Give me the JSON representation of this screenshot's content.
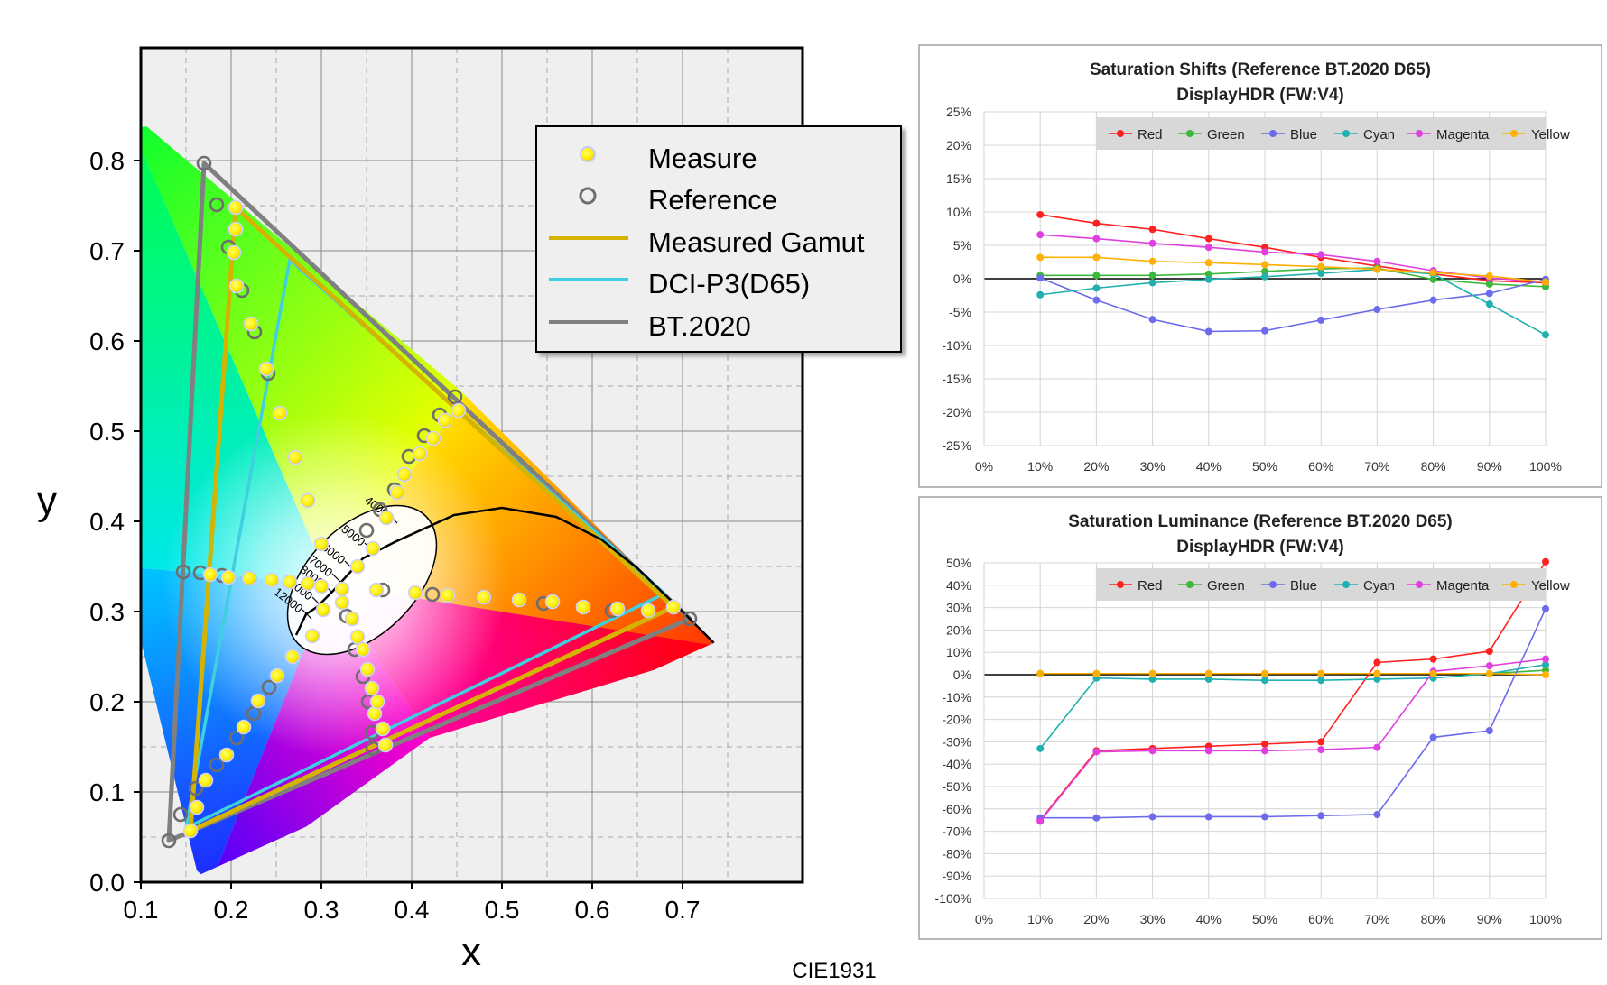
{
  "cie_chart": {
    "type": "scatter",
    "xlabel": "x",
    "ylabel": "y",
    "xlim": [
      0.1,
      0.75
    ],
    "ylim": [
      0.0,
      0.82
    ],
    "x_ticks": [
      "0.1",
      "0.2",
      "0.3",
      "0.4",
      "0.5",
      "0.6",
      "0.7"
    ],
    "y_ticks": [
      "0.0",
      "0.1",
      "0.2",
      "0.3",
      "0.4",
      "0.5",
      "0.6",
      "0.7",
      "0.8"
    ],
    "grid": true,
    "caption": "CIE1931",
    "legend": {
      "placement": "top-right",
      "items": [
        {
          "label": "Measure",
          "kind": "measure"
        },
        {
          "label": "Reference",
          "kind": "reference"
        },
        {
          "label": "Measured Gamut",
          "kind": "line",
          "color": "#D4B400"
        },
        {
          "label": "DCI-P3(D65)",
          "kind": "line",
          "color": "#3FD0E0"
        },
        {
          "label": "BT.2020",
          "kind": "line",
          "color": "#808080"
        }
      ]
    },
    "measure_color": "#FFEE00",
    "reference_color": "#6E6E6E",
    "gamuts": {
      "bt2020": [
        [
          0.708,
          0.292
        ],
        [
          0.17,
          0.797
        ],
        [
          0.131,
          0.046
        ]
      ],
      "dcip3": [
        [
          0.68,
          0.32
        ],
        [
          0.265,
          0.69
        ],
        [
          0.15,
          0.06
        ]
      ],
      "measured": [
        [
          0.69,
          0.305
        ],
        [
          0.205,
          0.748
        ],
        [
          0.155,
          0.057
        ]
      ]
    },
    "white_point": [
      0.3127,
      0.329
    ],
    "cct_labels": [
      "4000",
      "5000",
      "6000",
      "7000",
      "8000",
      "10000",
      "12000"
    ],
    "reference_points": [
      [
        0.17,
        0.797
      ],
      [
        0.184,
        0.751
      ],
      [
        0.197,
        0.704
      ],
      [
        0.212,
        0.656
      ],
      [
        0.226,
        0.61
      ],
      [
        0.241,
        0.564
      ],
      [
        0.708,
        0.292
      ],
      [
        0.622,
        0.301
      ],
      [
        0.546,
        0.309
      ],
      [
        0.48,
        0.316
      ],
      [
        0.423,
        0.319
      ],
      [
        0.368,
        0.324
      ],
      [
        0.131,
        0.046
      ],
      [
        0.144,
        0.075
      ],
      [
        0.161,
        0.104
      ],
      [
        0.184,
        0.13
      ],
      [
        0.206,
        0.16
      ],
      [
        0.225,
        0.187
      ],
      [
        0.242,
        0.216
      ],
      [
        0.147,
        0.344
      ],
      [
        0.166,
        0.343
      ],
      [
        0.19,
        0.34
      ],
      [
        0.22,
        0.337
      ],
      [
        0.448,
        0.538
      ],
      [
        0.431,
        0.518
      ],
      [
        0.414,
        0.495
      ],
      [
        0.397,
        0.472
      ],
      [
        0.381,
        0.435
      ],
      [
        0.365,
        0.413
      ],
      [
        0.35,
        0.39
      ],
      [
        0.357,
        0.148
      ],
      [
        0.356,
        0.166
      ],
      [
        0.352,
        0.2
      ],
      [
        0.346,
        0.228
      ],
      [
        0.337,
        0.258
      ],
      [
        0.328,
        0.295
      ]
    ],
    "measure_points": [
      [
        0.205,
        0.748
      ],
      [
        0.205,
        0.724
      ],
      [
        0.203,
        0.698
      ],
      [
        0.206,
        0.661
      ],
      [
        0.222,
        0.619
      ],
      [
        0.239,
        0.569
      ],
      [
        0.254,
        0.52
      ],
      [
        0.271,
        0.471
      ],
      [
        0.285,
        0.423
      ],
      [
        0.3,
        0.375
      ],
      [
        0.69,
        0.305
      ],
      [
        0.662,
        0.301
      ],
      [
        0.628,
        0.303
      ],
      [
        0.59,
        0.305
      ],
      [
        0.556,
        0.311
      ],
      [
        0.519,
        0.313
      ],
      [
        0.48,
        0.316
      ],
      [
        0.44,
        0.318
      ],
      [
        0.404,
        0.321
      ],
      [
        0.361,
        0.324
      ],
      [
        0.155,
        0.057
      ],
      [
        0.162,
        0.083
      ],
      [
        0.172,
        0.113
      ],
      [
        0.195,
        0.141
      ],
      [
        0.214,
        0.172
      ],
      [
        0.23,
        0.201
      ],
      [
        0.251,
        0.229
      ],
      [
        0.268,
        0.25
      ],
      [
        0.29,
        0.273
      ],
      [
        0.302,
        0.302
      ],
      [
        0.177,
        0.341
      ],
      [
        0.197,
        0.338
      ],
      [
        0.22,
        0.337
      ],
      [
        0.245,
        0.335
      ],
      [
        0.265,
        0.333
      ],
      [
        0.285,
        0.331
      ],
      [
        0.3,
        0.328
      ],
      [
        0.452,
        0.523
      ],
      [
        0.437,
        0.512
      ],
      [
        0.424,
        0.492
      ],
      [
        0.409,
        0.475
      ],
      [
        0.392,
        0.452
      ],
      [
        0.384,
        0.432
      ],
      [
        0.372,
        0.404
      ],
      [
        0.357,
        0.37
      ],
      [
        0.34,
        0.35
      ],
      [
        0.323,
        0.325
      ],
      [
        0.371,
        0.152
      ],
      [
        0.368,
        0.17
      ],
      [
        0.359,
        0.187
      ],
      [
        0.362,
        0.2
      ],
      [
        0.356,
        0.215
      ],
      [
        0.351,
        0.236
      ],
      [
        0.346,
        0.258
      ],
      [
        0.34,
        0.272
      ],
      [
        0.334,
        0.292
      ],
      [
        0.323,
        0.31
      ]
    ]
  },
  "shift_chart": {
    "type": "line",
    "title_line1": "Saturation Shifts (Reference BT.2020 D65)",
    "title_line2": "DisplayHDR (FW:V4)",
    "categories": [
      "0%",
      "10%",
      "20%",
      "30%",
      "40%",
      "50%",
      "60%",
      "70%",
      "80%",
      "90%",
      "100%"
    ],
    "ylim": [
      -25,
      25
    ],
    "y_ticks": [
      "-25%",
      "-20%",
      "-15%",
      "-10%",
      "-5%",
      "0%",
      "5%",
      "10%",
      "15%",
      "20%",
      "25%"
    ],
    "legend_placement": "top-right",
    "series": [
      {
        "name": "Red",
        "color": "#FF2020",
        "x": [
          10,
          20,
          30,
          40,
          50,
          60,
          70,
          80,
          90,
          100
        ],
        "values": [
          9.6,
          8.3,
          7.4,
          6.0,
          4.7,
          3.2,
          1.9,
          0.7,
          -0.3,
          -0.6
        ]
      },
      {
        "name": "Green",
        "color": "#3CB83C",
        "x": [
          10,
          20,
          30,
          40,
          50,
          60,
          70,
          80,
          90,
          100
        ],
        "values": [
          0.5,
          0.5,
          0.5,
          0.7,
          1.1,
          1.5,
          1.6,
          -0.1,
          -0.8,
          -1.2
        ]
      },
      {
        "name": "Blue",
        "color": "#6B6BEB",
        "x": [
          10,
          20,
          30,
          40,
          50,
          60,
          70,
          80,
          90,
          100
        ],
        "values": [
          0.1,
          -3.2,
          -6.1,
          -7.9,
          -7.8,
          -6.2,
          -4.6,
          -3.2,
          -2.2,
          -0.1
        ]
      },
      {
        "name": "Cyan",
        "color": "#20B0B0",
        "x": [
          10,
          20,
          30,
          40,
          50,
          60,
          70,
          80,
          90,
          100
        ],
        "values": [
          -2.4,
          -1.4,
          -0.6,
          -0.1,
          0.3,
          0.8,
          1.4,
          0.7,
          -3.8,
          -8.4
        ]
      },
      {
        "name": "Magenta",
        "color": "#E040E0",
        "x": [
          10,
          20,
          30,
          40,
          50,
          60,
          70,
          80,
          90,
          100
        ],
        "values": [
          6.6,
          6.0,
          5.3,
          4.7,
          4.0,
          3.6,
          2.6,
          1.2,
          0.1,
          -0.5
        ]
      },
      {
        "name": "Yellow",
        "color": "#FFB000",
        "x": [
          10,
          20,
          30,
          40,
          50,
          60,
          70,
          80,
          90,
          100
        ],
        "values": [
          3.2,
          3.2,
          2.6,
          2.4,
          2.1,
          1.8,
          1.4,
          0.9,
          0.4,
          -0.5
        ]
      }
    ]
  },
  "lum_chart": {
    "type": "line",
    "title_line1": "Saturation Luminance (Reference BT.2020 D65)",
    "title_line2": "DisplayHDR (FW:V4)",
    "categories": [
      "0%",
      "10%",
      "20%",
      "30%",
      "40%",
      "50%",
      "60%",
      "70%",
      "80%",
      "90%",
      "100%"
    ],
    "ylim": [
      -100,
      50
    ],
    "y_ticks": [
      "-100%",
      "-90%",
      "-80%",
      "-70%",
      "-60%",
      "-50%",
      "-40%",
      "-30%",
      "-20%",
      "-10%",
      "0%",
      "10%",
      "20%",
      "30%",
      "40%",
      "50%"
    ],
    "legend_placement": "top-right",
    "series": [
      {
        "name": "Red",
        "color": "#FF2020",
        "x": [
          10,
          20,
          30,
          40,
          50,
          60,
          70,
          80,
          90,
          100
        ],
        "values": [
          -65,
          -34,
          -33,
          -32,
          -31,
          -30,
          5.5,
          7,
          10.5,
          50.5
        ]
      },
      {
        "name": "Green",
        "color": "#3CB83C",
        "x": [
          10,
          20,
          30,
          40,
          50,
          60,
          70,
          80,
          90,
          100
        ],
        "values": [
          0.5,
          0.5,
          0.5,
          0.5,
          0.5,
          0.5,
          0.5,
          0.5,
          0.5,
          2
        ]
      },
      {
        "name": "Blue",
        "color": "#6B6BEB",
        "x": [
          10,
          20,
          30,
          40,
          50,
          60,
          70,
          80,
          90,
          100
        ],
        "values": [
          -64,
          -64,
          -63.5,
          -63.5,
          -63.5,
          -63,
          -62.5,
          -28,
          -25,
          29.5
        ]
      },
      {
        "name": "Cyan",
        "color": "#20B0B0",
        "x": [
          10,
          20,
          30,
          40,
          50,
          60,
          70,
          80,
          90,
          100
        ],
        "values": [
          -33,
          -1.5,
          -2,
          -2,
          -2.5,
          -2.5,
          -2,
          -1.5,
          0.5,
          4.5
        ]
      },
      {
        "name": "Magenta",
        "color": "#E040E0",
        "x": [
          10,
          20,
          30,
          40,
          50,
          60,
          70,
          80,
          90,
          100
        ],
        "values": [
          -65.5,
          -34.5,
          -34,
          -34,
          -34,
          -33.5,
          -32.5,
          1.5,
          4,
          7
        ]
      },
      {
        "name": "Yellow",
        "color": "#FFB000",
        "x": [
          10,
          20,
          30,
          40,
          50,
          60,
          70,
          80,
          90,
          100
        ],
        "values": [
          0.5,
          0.5,
          0.5,
          0.5,
          0.5,
          0.5,
          0.5,
          0.5,
          0.5,
          0
        ]
      }
    ]
  }
}
